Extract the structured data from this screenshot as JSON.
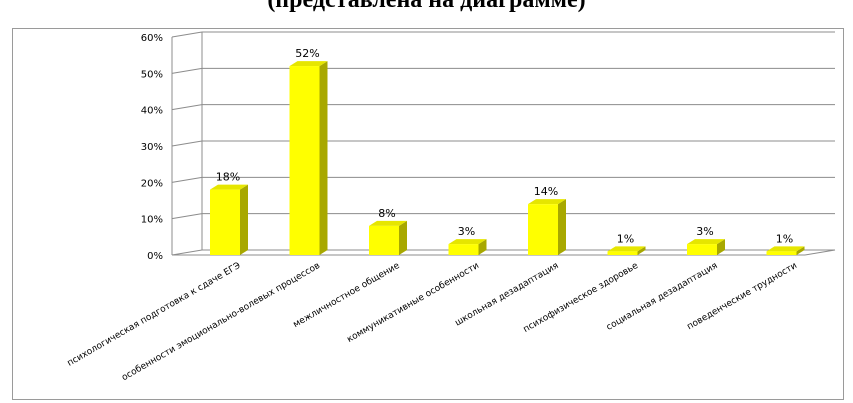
{
  "title": "(представлена на диаграмме)",
  "chart_data": {
    "type": "bar",
    "categories": [
      "психологическая подготовка к сдаче ЕГЭ",
      "особенности эмоционально-волевых процессов",
      "межличностное общение",
      "коммуникативные особенности",
      "школьная дезадаптация",
      "психофизическое здоровье",
      "социальная дезадаптация",
      "поведенческие трудности"
    ],
    "values": [
      18,
      52,
      8,
      3,
      14,
      1,
      3,
      1
    ],
    "value_labels": [
      "18%",
      "52%",
      "8%",
      "3%",
      "14%",
      "1%",
      "3%",
      "1%"
    ],
    "y_ticks": [
      "0%",
      "10%",
      "20%",
      "30%",
      "40%",
      "50%",
      "60%"
    ],
    "ylim": [
      0,
      60
    ],
    "grid": true,
    "bar_color": "#ffff00",
    "bar_side_color": "#a8a800",
    "bar_top_color": "#e6e600"
  }
}
